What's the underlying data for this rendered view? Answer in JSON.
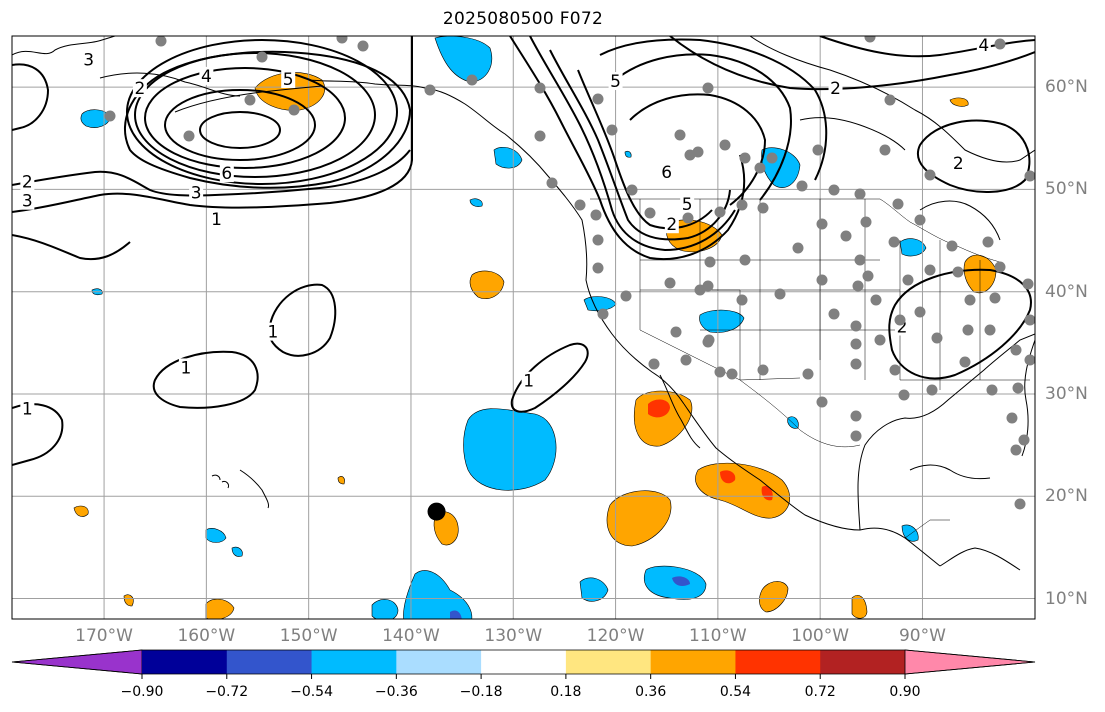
{
  "title": "2025080500 F072",
  "map": {
    "lon_range": [
      -179,
      -79
    ],
    "lat_range": [
      8,
      65
    ],
    "lon_labels": [
      {
        "lon": -170,
        "text": "170°W"
      },
      {
        "lon": -160,
        "text": "160°W"
      },
      {
        "lon": -150,
        "text": "150°W"
      },
      {
        "lon": -140,
        "text": "140°W"
      },
      {
        "lon": -130,
        "text": "130°W"
      },
      {
        "lon": -120,
        "text": "120°W"
      },
      {
        "lon": -110,
        "text": "110°W"
      },
      {
        "lon": -100,
        "text": "100°W"
      },
      {
        "lon": -90,
        "text": "90°W"
      }
    ],
    "lat_labels": [
      {
        "lat": 10,
        "text": "10°N"
      },
      {
        "lat": 20,
        "text": "20°N"
      },
      {
        "lat": 30,
        "text": "30°N"
      },
      {
        "lat": 40,
        "text": "40°N"
      },
      {
        "lat": 50,
        "text": "50°N"
      },
      {
        "lat": 60,
        "text": "60°N"
      }
    ],
    "storm_marker": {
      "lon": -137.5,
      "lat": 18.5,
      "color": "#000000"
    },
    "station_color": "#808080",
    "contour_labels": [
      {
        "text": "2",
        "lon": -166.5,
        "lat": 59.8
      },
      {
        "text": "4",
        "lon": -160,
        "lat": 61
      },
      {
        "text": "5",
        "lon": -152,
        "lat": 60.7
      },
      {
        "text": "6",
        "lon": -158,
        "lat": 51.5
      },
      {
        "text": "3",
        "lon": -161,
        "lat": 49.6
      },
      {
        "text": "1",
        "lon": -159,
        "lat": 47
      },
      {
        "text": "2",
        "lon": -177.5,
        "lat": 50.7
      },
      {
        "text": "3",
        "lon": -177.5,
        "lat": 48.8
      },
      {
        "text": "3",
        "lon": -171.5,
        "lat": 62.6
      },
      {
        "text": "1",
        "lon": -153.5,
        "lat": 36
      },
      {
        "text": "1",
        "lon": -162,
        "lat": 32.5
      },
      {
        "text": "1",
        "lon": -177.5,
        "lat": 28.5
      },
      {
        "text": "1",
        "lon": -128.5,
        "lat": 31.2
      },
      {
        "text": "5",
        "lon": -120,
        "lat": 60.5
      },
      {
        "text": "6",
        "lon": -115,
        "lat": 51.6
      },
      {
        "text": "5",
        "lon": -113,
        "lat": 48.5
      },
      {
        "text": "2",
        "lon": -114.5,
        "lat": 46.5
      },
      {
        "text": "2",
        "lon": -98.5,
        "lat": 59.8
      },
      {
        "text": "2",
        "lon": -86.5,
        "lat": 52.5
      },
      {
        "text": "4",
        "lon": -84,
        "lat": 64
      },
      {
        "text": "2",
        "lon": -92,
        "lat": 36.5
      }
    ]
  },
  "colorbar": {
    "colors": [
      "#9933CC",
      "#000099",
      "#3355CC",
      "#00BBFF",
      "#AADDFF",
      "#FFFFFF",
      "#FFE680",
      "#FFA500",
      "#FF3300",
      "#B22222",
      "#FF88AA"
    ],
    "ticks": [
      "−0.90",
      "−0.72",
      "−0.54",
      "−0.36",
      "−0.18",
      "0.18",
      "0.36",
      "0.54",
      "0.72",
      "0.90"
    ]
  },
  "chart_data": {
    "type": "contour-map",
    "valid_time_label": "2025080500 F072",
    "contour_levels_labeled": [
      1,
      2,
      3,
      4,
      5,
      6
    ],
    "colorbar_levels": [
      -0.9,
      -0.72,
      -0.54,
      -0.36,
      -0.18,
      0.18,
      0.36,
      0.54,
      0.72,
      0.9
    ],
    "storm_position": {
      "lon": -137.5,
      "lat": 18.5
    }
  }
}
